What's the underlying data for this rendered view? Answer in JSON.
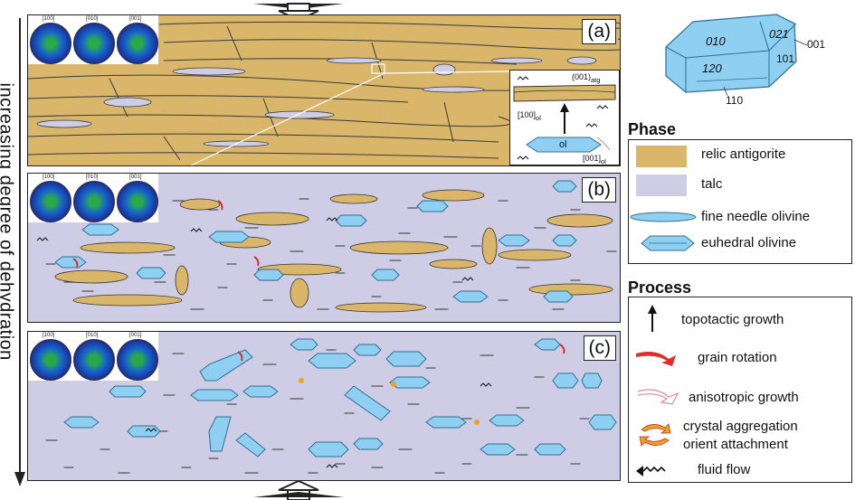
{
  "axis_label": "increasing degree of dehydration",
  "panels": {
    "a": {
      "label": "(a)",
      "pole_figures": [
        "[100]",
        "[010]",
        "[001]"
      ]
    },
    "b": {
      "label": "(b)",
      "pole_figures": [
        "[100]",
        "[010]",
        "[001]"
      ]
    },
    "c": {
      "label": "(c)",
      "pole_figures": [
        "[100]",
        "[010]",
        "[001]"
      ]
    }
  },
  "inset": {
    "top_label": "(001)",
    "top_sub": "atg",
    "left_label": "[100]",
    "left_sub": "ol",
    "right_label": "[001]",
    "right_sub": "ol",
    "crystal_label": "ol"
  },
  "crystal": {
    "faces": [
      "010",
      "021",
      "120",
      "101"
    ],
    "callouts": [
      "001",
      "110"
    ]
  },
  "phase": {
    "title": "Phase",
    "items": [
      "relic antigorite",
      "talc",
      "fine needle olivine",
      "euhedral olivine"
    ]
  },
  "process": {
    "title": "Process",
    "items": [
      "topotactic growth",
      "grain rotation",
      "anisotropic growth",
      "crystal aggregation",
      "orient attachment",
      "fluid flow"
    ]
  },
  "colors": {
    "antigorite": "#d9b66a",
    "talc": "#cfcde6",
    "olivine": "#8fd0f2",
    "olivine_edge": "#2f6f93",
    "rotation": "#e02b2b",
    "aggregation": "#f0a020"
  }
}
